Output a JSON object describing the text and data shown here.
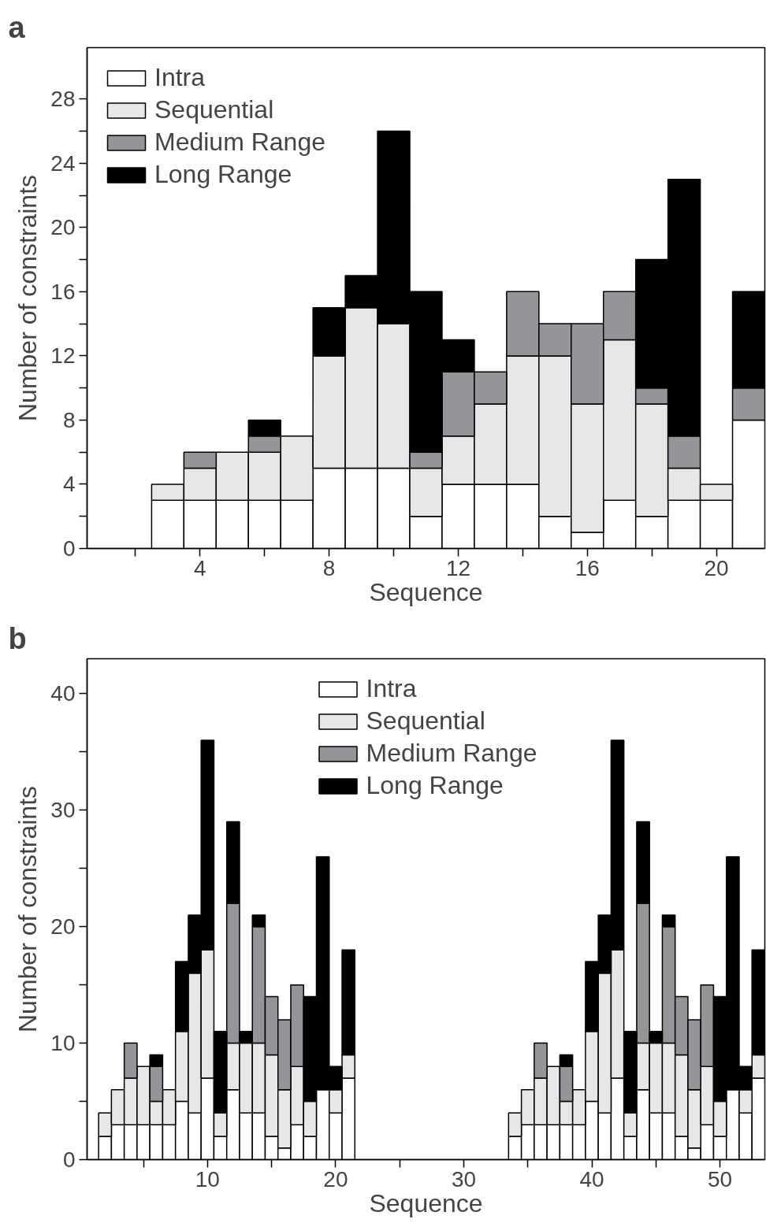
{
  "chart_data": [
    {
      "type": "bar",
      "title": "a",
      "xlabel": "Sequence",
      "ylabel": "Number of constraints",
      "stacked": true,
      "grid": false,
      "legend": "top left",
      "x": [
        3,
        4,
        5,
        6,
        7,
        8,
        9,
        10,
        11,
        12,
        13,
        14,
        15,
        16,
        17,
        18,
        19,
        20,
        21
      ],
      "series": [
        {
          "name": "Intra",
          "color": "#ffffff",
          "values": [
            3,
            3,
            3,
            3,
            3,
            5,
            5,
            5,
            2,
            4,
            4,
            4,
            2,
            1,
            3,
            2,
            3,
            3,
            8
          ]
        },
        {
          "name": "Sequential",
          "color": "#e6e7e9",
          "values": [
            1,
            2,
            3,
            3,
            4,
            7,
            10,
            9,
            3,
            3,
            5,
            8,
            10,
            8,
            10,
            7,
            2,
            1,
            0
          ]
        },
        {
          "name": "Medium Range",
          "color": "#939598",
          "values": [
            0,
            1,
            0,
            1,
            0,
            0,
            0,
            0,
            1,
            4,
            2,
            4,
            2,
            5,
            3,
            1,
            2,
            0,
            2
          ]
        },
        {
          "name": "Long Range",
          "color": "#000000",
          "values": [
            0,
            0,
            0,
            1,
            0,
            3,
            2,
            12,
            10,
            2,
            0,
            0,
            0,
            0,
            0,
            8,
            16,
            0,
            6
          ]
        }
      ],
      "xlim": [
        0.5,
        21.5
      ],
      "ylim": [
        0,
        31.2
      ],
      "xticks": [
        {
          "value": 2,
          "label": null
        },
        4,
        {
          "value": 6,
          "label": null
        },
        8,
        {
          "value": 10,
          "label": null
        },
        12,
        {
          "value": 14,
          "label": null
        },
        16,
        {
          "value": 18,
          "label": null
        },
        20
      ],
      "yticks": [
        0,
        {
          "value": 2,
          "label": null
        },
        4,
        {
          "value": 6,
          "label": null
        },
        8,
        {
          "value": 10,
          "label": null
        },
        12,
        {
          "value": 14,
          "label": null
        },
        16,
        {
          "value": 18,
          "label": null
        },
        20,
        {
          "value": 22,
          "label": null
        },
        24,
        {
          "value": 26,
          "label": null
        },
        28
      ]
    },
    {
      "type": "bar",
      "title": "b",
      "xlabel": "Sequence",
      "ylabel": "Number of constraints",
      "stacked": true,
      "grid": false,
      "legend": "top",
      "x": [
        2,
        3,
        4,
        5,
        6,
        7,
        8,
        9,
        10,
        11,
        12,
        13,
        14,
        15,
        16,
        17,
        18,
        19,
        20,
        21,
        34,
        35,
        36,
        37,
        38,
        39,
        40,
        41,
        42,
        43,
        44,
        45,
        46,
        47,
        48,
        49,
        50,
        51,
        52,
        53
      ],
      "series": [
        {
          "name": "Intra",
          "color": "#ffffff",
          "values": [
            2,
            3,
            3,
            3,
            3,
            3,
            5,
            4,
            7,
            2,
            6,
            4,
            4,
            2,
            1,
            3,
            2,
            6,
            4,
            7,
            2,
            3,
            3,
            3,
            3,
            3,
            5,
            4,
            7,
            2,
            6,
            4,
            4,
            2,
            1,
            3,
            2,
            6,
            4,
            7
          ]
        },
        {
          "name": "Sequential",
          "color": "#e6e7e9",
          "values": [
            2,
            3,
            4,
            5,
            2,
            3,
            6,
            12,
            11,
            2,
            4,
            6,
            6,
            7,
            5,
            5,
            3,
            0,
            2,
            2,
            2,
            3,
            4,
            5,
            2,
            3,
            6,
            12,
            11,
            2,
            4,
            6,
            6,
            7,
            5,
            5,
            3,
            0,
            2,
            2
          ]
        },
        {
          "name": "Medium Range",
          "color": "#939598",
          "values": [
            0,
            0,
            3,
            0,
            3,
            0,
            0,
            0,
            0,
            0,
            12,
            0,
            10,
            5,
            6,
            7,
            0,
            0,
            0,
            0,
            0,
            0,
            3,
            0,
            3,
            0,
            0,
            0,
            0,
            0,
            12,
            0,
            10,
            5,
            6,
            7,
            0,
            0,
            0,
            0
          ]
        },
        {
          "name": "Long Range",
          "color": "#000000",
          "values": [
            0,
            0,
            0,
            0,
            1,
            0,
            6,
            5,
            18,
            7,
            7,
            1,
            1,
            0,
            0,
            0,
            9,
            20,
            2,
            9,
            0,
            0,
            0,
            0,
            1,
            0,
            6,
            5,
            18,
            7,
            7,
            1,
            1,
            0,
            0,
            0,
            9,
            20,
            2,
            9
          ]
        }
      ],
      "xlim": [
        0.6,
        53.5
      ],
      "ylim": [
        0,
        43
      ],
      "xticks": [
        {
          "value": 5,
          "label": null
        },
        10,
        {
          "value": 15,
          "label": null
        },
        20,
        {
          "value": 25,
          "label": null
        },
        30,
        {
          "value": 35,
          "label": null
        },
        40,
        {
          "value": 45,
          "label": null
        },
        50
      ],
      "yticks": [
        0,
        {
          "value": 5,
          "label": null
        },
        10,
        {
          "value": 15,
          "label": null
        },
        20,
        {
          "value": 25,
          "label": null
        },
        30,
        {
          "value": 35,
          "label": null
        },
        40
      ]
    }
  ]
}
